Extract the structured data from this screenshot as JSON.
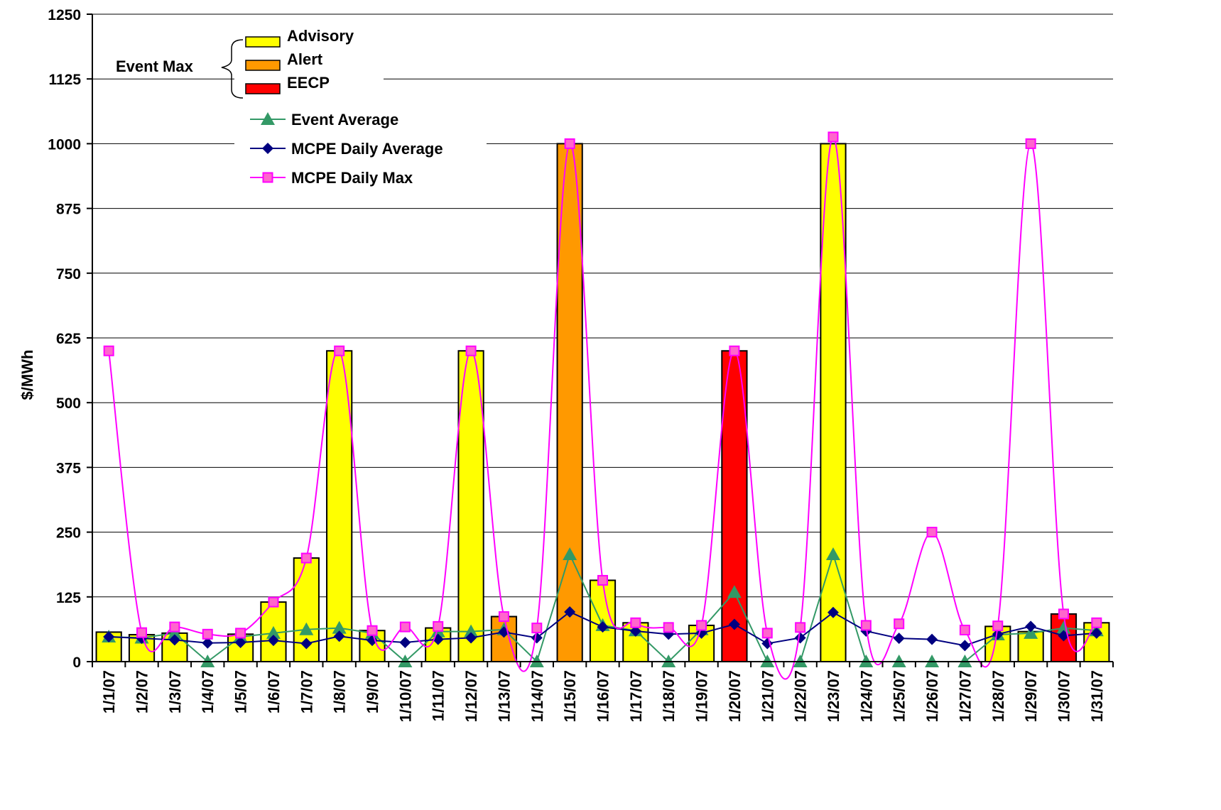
{
  "chart_data": {
    "type": "bar",
    "ylabel": "$/MWh",
    "xlabel": "",
    "title": "",
    "ylim": [
      0,
      1250
    ],
    "yticks": [
      0,
      125,
      250,
      375,
      500,
      625,
      750,
      875,
      1000,
      1125,
      1250
    ],
    "grid": "horizontal",
    "categories": [
      "1/1/07",
      "1/2/07",
      "1/3/07",
      "1/4/07",
      "1/5/07",
      "1/6/07",
      "1/7/07",
      "1/8/07",
      "1/9/07",
      "1/10/07",
      "1/11/07",
      "1/12/07",
      "1/13/07",
      "1/14/07",
      "1/15/07",
      "1/16/07",
      "1/17/07",
      "1/18/07",
      "1/19/07",
      "1/20/07",
      "1/21/07",
      "1/22/07",
      "1/23/07",
      "1/24/07",
      "1/25/07",
      "1/26/07",
      "1/27/07",
      "1/28/07",
      "1/29/07",
      "1/30/07",
      "1/31/07"
    ],
    "legend": {
      "group_label": "Event Max",
      "placement": "top-left"
    },
    "bar_types": [
      {
        "name": "Advisory",
        "color": "#FFFF00"
      },
      {
        "name": "Alert",
        "color": "#FF9900"
      },
      {
        "name": "EECP",
        "color": "#FF0000"
      }
    ],
    "event_max": [
      {
        "value": 57,
        "type": "Advisory"
      },
      {
        "value": 52,
        "type": "Advisory"
      },
      {
        "value": 55,
        "type": "Advisory"
      },
      {
        "value": 0,
        "type": "Advisory"
      },
      {
        "value": 53,
        "type": "Advisory"
      },
      {
        "value": 115,
        "type": "Advisory"
      },
      {
        "value": 200,
        "type": "Advisory"
      },
      {
        "value": 600,
        "type": "Advisory"
      },
      {
        "value": 60,
        "type": "Advisory"
      },
      {
        "value": 0,
        "type": "Advisory"
      },
      {
        "value": 65,
        "type": "Advisory"
      },
      {
        "value": 600,
        "type": "Advisory"
      },
      {
        "value": 87,
        "type": "Alert"
      },
      {
        "value": 0,
        "type": "Advisory"
      },
      {
        "value": 1000,
        "type": "Alert"
      },
      {
        "value": 157,
        "type": "Advisory"
      },
      {
        "value": 75,
        "type": "Advisory"
      },
      {
        "value": 0,
        "type": "Advisory"
      },
      {
        "value": 70,
        "type": "Advisory"
      },
      {
        "value": 600,
        "type": "EECP"
      },
      {
        "value": 0,
        "type": "Advisory"
      },
      {
        "value": 0,
        "type": "Advisory"
      },
      {
        "value": 1000,
        "type": "Advisory"
      },
      {
        "value": 0,
        "type": "Advisory"
      },
      {
        "value": 0,
        "type": "Advisory"
      },
      {
        "value": 0,
        "type": "Advisory"
      },
      {
        "value": 0,
        "type": "Advisory"
      },
      {
        "value": 68,
        "type": "Advisory"
      },
      {
        "value": 58,
        "type": "Advisory"
      },
      {
        "value": 92,
        "type": "EECP"
      },
      {
        "value": 75,
        "type": "Advisory"
      }
    ],
    "series": [
      {
        "name": "Event Average",
        "color": "#339966",
        "marker": "triangle",
        "values": [
          48,
          46,
          55,
          0,
          48,
          55,
          62,
          65,
          55,
          0,
          58,
          58,
          62,
          0,
          207,
          70,
          60,
          0,
          62,
          134,
          0,
          0,
          207,
          0,
          0,
          0,
          0,
          52,
          55,
          65,
          60
        ]
      },
      {
        "name": "MCPE Daily Average",
        "color": "#000080",
        "marker": "diamond",
        "values": [
          48,
          45,
          42,
          36,
          37,
          41,
          35,
          49,
          41,
          37,
          43,
          46,
          57,
          46,
          96,
          67,
          59,
          53,
          55,
          72,
          35,
          46,
          95,
          59,
          45,
          43,
          31,
          53,
          68,
          50,
          55
        ]
      },
      {
        "name": "MCPE Daily Max",
        "color": "#FF00FF",
        "marker": "square",
        "values": [
          600,
          56,
          67,
          53,
          55,
          115,
          200,
          600,
          60,
          67,
          68,
          600,
          87,
          65,
          1000,
          157,
          75,
          66,
          70,
          600,
          55,
          66,
          1013,
          70,
          73,
          250,
          61,
          69,
          1000,
          92,
          75
        ]
      }
    ]
  }
}
